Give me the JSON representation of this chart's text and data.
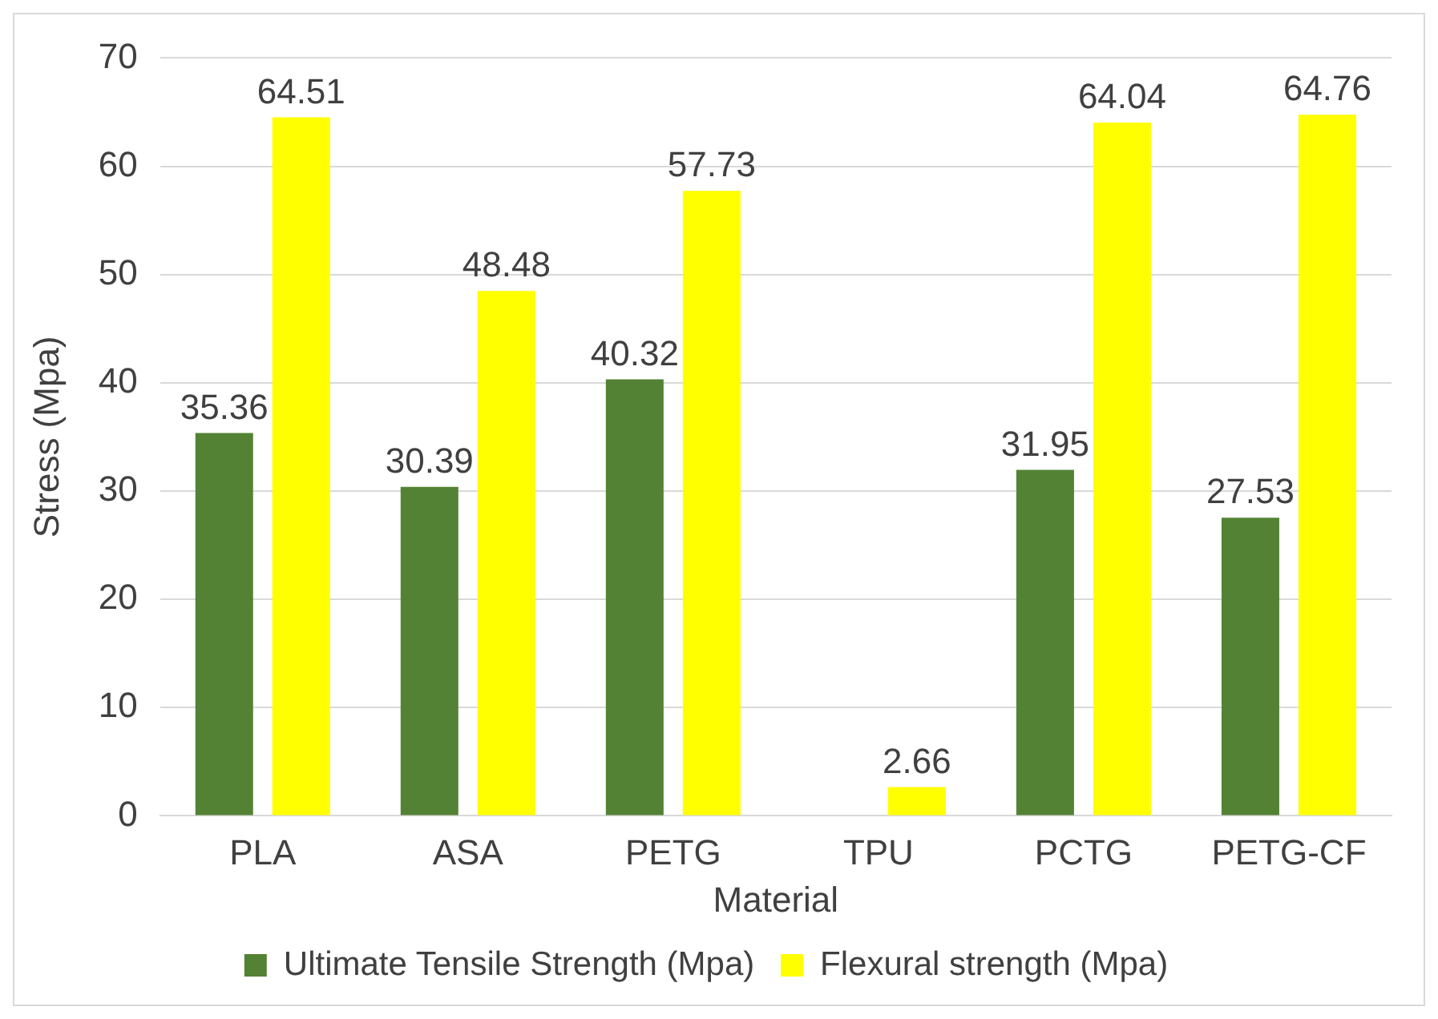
{
  "chart_data": {
    "type": "bar",
    "xlabel": "Material",
    "ylabel": "Stress (Mpa)",
    "categories": [
      "PLA",
      "ASA",
      "PETG",
      "TPU",
      "PCTG",
      "PETG-CF"
    ],
    "series": [
      {
        "name": "Ultimate Tensile Strength (Mpa)",
        "color": "#548235",
        "values": [
          35.36,
          30.39,
          40.32,
          null,
          31.95,
          27.53
        ]
      },
      {
        "name": "Flexural strength (Mpa)",
        "color": "#ffff00",
        "values": [
          64.51,
          48.48,
          57.73,
          2.66,
          64.04,
          64.76
        ]
      }
    ],
    "ylim": [
      0,
      70
    ],
    "yticks": [
      0,
      10,
      20,
      30,
      40,
      50,
      60,
      70
    ],
    "grid": "y",
    "legend": "bottom",
    "data_labels": true
  }
}
